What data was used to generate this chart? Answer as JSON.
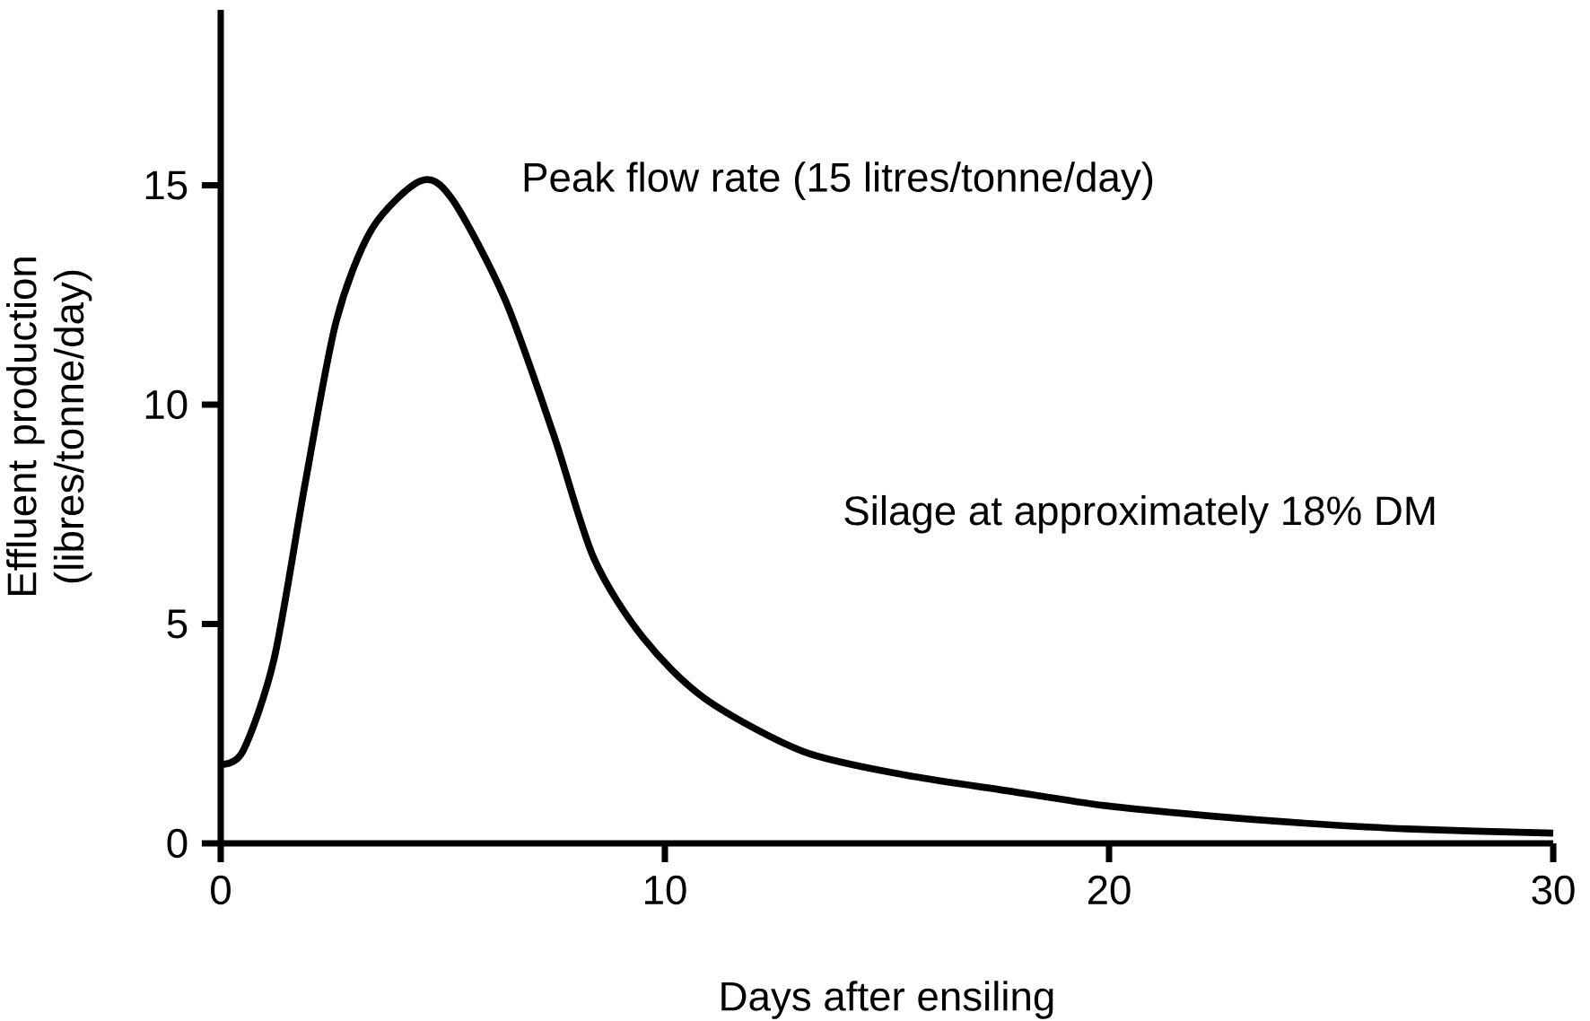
{
  "chart_data": {
    "type": "line",
    "xlabel": "Days after ensiling",
    "ylabel": "Effluent production (libres/tonne/day)",
    "annotations": [
      "Peak flow rate (15 litres/tonne/day)",
      "Silage at approximately 18% DM"
    ],
    "x": [
      0,
      0.5,
      1.2,
      1.9,
      2.6,
      3.4,
      4.5,
      5.2,
      6.4,
      7.5,
      8.4,
      9.5,
      10.9,
      13.1,
      15.4,
      17.7,
      19.9,
      22.2,
      24.4,
      26.7,
      30
    ],
    "series": [
      {
        "color": "#000000",
        "values": [
          1.8,
          2.1,
          4.2,
          8.2,
          11.9,
          14.0,
          15.1,
          14.7,
          12.4,
          9.3,
          6.5,
          4.7,
          3.3,
          2.1,
          1.56,
          1.2,
          0.86,
          0.63,
          0.46,
          0.33,
          0.23
        ]
      }
    ],
    "xlim": [
      0,
      30
    ],
    "ylim": [
      0,
      19
    ],
    "xticks": [
      0,
      10,
      20,
      30
    ],
    "yticks": [
      0,
      5,
      10,
      15
    ],
    "grid": false,
    "marker": "none",
    "line_style": "solid"
  }
}
